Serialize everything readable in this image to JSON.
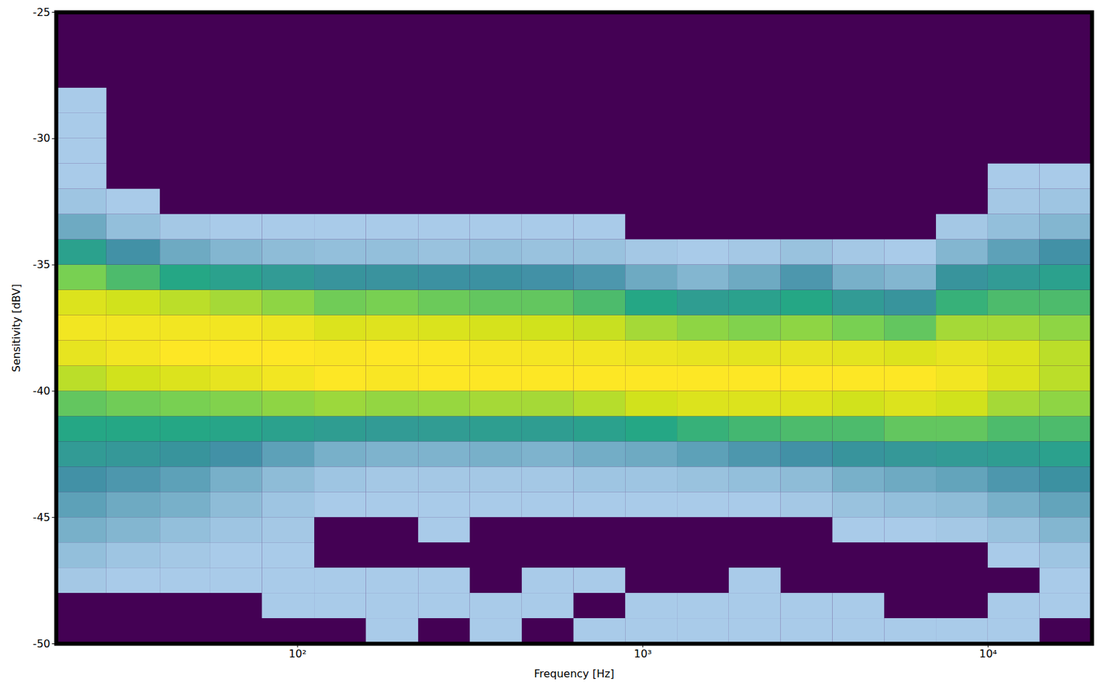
{
  "chart_data": {
    "type": "heatmap",
    "x_label": "Frequency [Hz]",
    "y_label": "Sensitivity [dBV]",
    "log": "x",
    "grid": false,
    "xlim": [
      20,
      20000
    ],
    "ylim": [
      -50,
      -25
    ],
    "xticks": [
      {
        "value": 100,
        "label": "10²"
      },
      {
        "value": 1000,
        "label": "10³"
      },
      {
        "value": 10000,
        "label": "10⁴"
      }
    ],
    "yticks": [
      -50,
      -45,
      -40,
      -35,
      -30,
      -25
    ],
    "x_bins": [
      20,
      28,
      40,
      56,
      79,
      112,
      158,
      224,
      316,
      447,
      631,
      891,
      1259,
      1778,
      2512,
      3548,
      5012,
      7079,
      10000,
      14125,
      20000
    ],
    "y_bins": [
      -50,
      -49,
      -48,
      -47,
      -46,
      -45,
      -44,
      -43,
      -42,
      -41,
      -40,
      -39,
      -38,
      -37,
      -36,
      -35,
      -34,
      -33,
      -32,
      -31,
      -30,
      -29,
      -28,
      -27,
      -26,
      -25
    ],
    "counts": [
      [
        0,
        0,
        2,
        5,
        10,
        15,
        20,
        30,
        40,
        55,
        75,
        90,
        95,
        85,
        60,
        35,
        12,
        3,
        1,
        1,
        1,
        1,
        0,
        0,
        0
      ],
      [
        0,
        0,
        1,
        3,
        8,
        12,
        18,
        28,
        40,
        58,
        80,
        95,
        95,
        80,
        50,
        20,
        5,
        1,
        0,
        0,
        0,
        0,
        0,
        0,
        0
      ],
      [
        0,
        0,
        1,
        2,
        5,
        10,
        15,
        25,
        40,
        60,
        85,
        100,
        95,
        75,
        40,
        12,
        2,
        0,
        0,
        0,
        0,
        0,
        0,
        0,
        0
      ],
      [
        0,
        0,
        1,
        1,
        3,
        6,
        10,
        20,
        38,
        62,
        90,
        100,
        95,
        70,
        35,
        8,
        1,
        0,
        0,
        0,
        0,
        0,
        0,
        0,
        0
      ],
      [
        0,
        1,
        1,
        1,
        2,
        3,
        6,
        15,
        35,
        65,
        95,
        100,
        92,
        65,
        30,
        6,
        1,
        0,
        0,
        0,
        0,
        0,
        0,
        0,
        0
      ],
      [
        0,
        1,
        1,
        0,
        0,
        1,
        3,
        10,
        32,
        68,
        100,
        98,
        85,
        58,
        25,
        5,
        1,
        0,
        0,
        0,
        0,
        0,
        0,
        0,
        0
      ],
      [
        1,
        1,
        1,
        0,
        0,
        1,
        2,
        9,
        30,
        66,
        98,
        100,
        86,
        60,
        24,
        5,
        1,
        0,
        0,
        0,
        0,
        0,
        0,
        0,
        0
      ],
      [
        0,
        1,
        1,
        0,
        1,
        1,
        2,
        9,
        31,
        67,
        100,
        99,
        84,
        57,
        22,
        4,
        1,
        0,
        0,
        0,
        0,
        0,
        0,
        0,
        0
      ],
      [
        1,
        1,
        0,
        0,
        0,
        1,
        2,
        10,
        33,
        70,
        100,
        97,
        82,
        55,
        22,
        5,
        1,
        0,
        0,
        0,
        0,
        0,
        0,
        0,
        0
      ],
      [
        0,
        1,
        1,
        0,
        0,
        1,
        2,
        9,
        32,
        70,
        100,
        96,
        80,
        55,
        20,
        4,
        1,
        0,
        0,
        0,
        0,
        0,
        0,
        0,
        0
      ],
      [
        1,
        0,
        1,
        0,
        0,
        1,
        3,
        11,
        35,
        74,
        100,
        95,
        78,
        50,
        18,
        4,
        1,
        0,
        0,
        0,
        0,
        0,
        0,
        0,
        0
      ],
      [
        1,
        1,
        0,
        0,
        0,
        1,
        3,
        12,
        40,
        80,
        100,
        92,
        70,
        40,
        12,
        2,
        0,
        0,
        0,
        0,
        0,
        0,
        0,
        0,
        0
      ],
      [
        1,
        1,
        0,
        0,
        0,
        1,
        4,
        15,
        45,
        85,
        100,
        90,
        65,
        32,
        8,
        1,
        0,
        0,
        0,
        0,
        0,
        0,
        0,
        0,
        0
      ],
      [
        1,
        1,
        1,
        0,
        0,
        1,
        5,
        18,
        48,
        85,
        100,
        88,
        62,
        35,
        12,
        2,
        0,
        0,
        0,
        0,
        0,
        0,
        0,
        0,
        0
      ],
      [
        1,
        1,
        0,
        0,
        0,
        2,
        6,
        20,
        50,
        85,
        100,
        90,
        65,
        40,
        18,
        4,
        0,
        0,
        0,
        0,
        0,
        0,
        0,
        0,
        0
      ],
      [
        1,
        1,
        0,
        0,
        1,
        4,
        10,
        25,
        50,
        80,
        100,
        88,
        60,
        30,
        10,
        2,
        0,
        0,
        0,
        0,
        0,
        0,
        0,
        0,
        0
      ],
      [
        1,
        0,
        0,
        0,
        1,
        5,
        12,
        28,
        55,
        85,
        100,
        85,
        55,
        25,
        8,
        1,
        0,
        0,
        0,
        0,
        0,
        0,
        0,
        0,
        0
      ],
      [
        1,
        0,
        0,
        0,
        2,
        6,
        14,
        30,
        55,
        80,
        95,
        90,
        70,
        45,
        25,
        8,
        2,
        0,
        0,
        0,
        0,
        0,
        0,
        0,
        0
      ],
      [
        1,
        1,
        0,
        1,
        4,
        10,
        18,
        32,
        50,
        70,
        85,
        85,
        70,
        50,
        30,
        15,
        5,
        2,
        1,
        0,
        0,
        0,
        0,
        0,
        0
      ],
      [
        0,
        1,
        1,
        3,
        8,
        14,
        22,
        35,
        50,
        65,
        75,
        75,
        65,
        50,
        35,
        20,
        8,
        3,
        1,
        0,
        0,
        0,
        0,
        0,
        0
      ]
    ]
  }
}
